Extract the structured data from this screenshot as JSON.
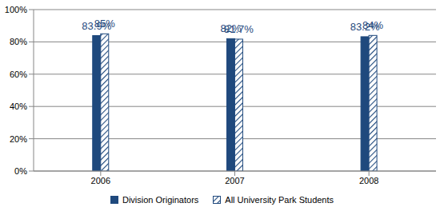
{
  "chart_data": {
    "type": "bar",
    "categories": [
      "2006",
      "2007",
      "2008"
    ],
    "series": [
      {
        "name": "Division Originators",
        "color": "#1f497d",
        "values": [
          83.9,
          82,
          83.2
        ],
        "value_labels": [
          "83.9%",
          "82%",
          "83.2%"
        ]
      },
      {
        "name": "All University Park Students",
        "color": "#1f497d",
        "values": [
          85,
          81.7,
          84
        ],
        "value_labels": [
          "85%",
          "81.7%",
          "84%"
        ]
      }
    ],
    "ylim": [
      0,
      100
    ],
    "yticks": [
      {
        "value": 0,
        "label": "0%"
      },
      {
        "value": 20,
        "label": "20%"
      },
      {
        "value": 40,
        "label": "40%"
      },
      {
        "value": 60,
        "label": "60%"
      },
      {
        "value": 80,
        "label": "80%"
      },
      {
        "value": 100,
        "label": "100%"
      }
    ],
    "grid": true,
    "legend": "bottom",
    "data_labels": true
  }
}
